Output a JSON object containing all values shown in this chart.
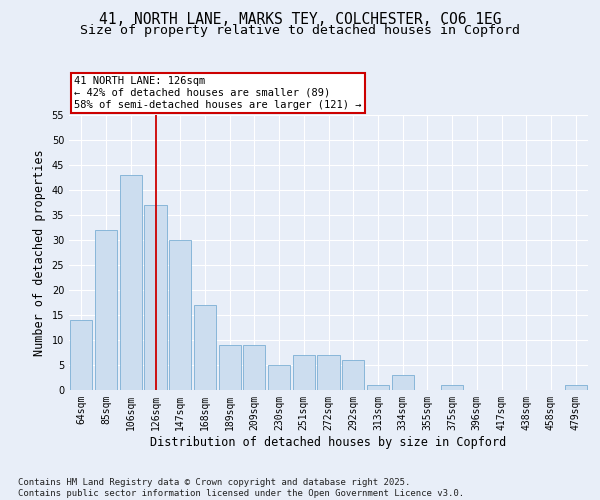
{
  "title_line1": "41, NORTH LANE, MARKS TEY, COLCHESTER, CO6 1EG",
  "title_line2": "Size of property relative to detached houses in Copford",
  "xlabel": "Distribution of detached houses by size in Copford",
  "ylabel": "Number of detached properties",
  "categories": [
    "64sqm",
    "85sqm",
    "106sqm",
    "126sqm",
    "147sqm",
    "168sqm",
    "189sqm",
    "209sqm",
    "230sqm",
    "251sqm",
    "272sqm",
    "292sqm",
    "313sqm",
    "334sqm",
    "355sqm",
    "375sqm",
    "396sqm",
    "417sqm",
    "438sqm",
    "458sqm",
    "479sqm"
  ],
  "values": [
    14,
    32,
    43,
    37,
    30,
    17,
    9,
    9,
    5,
    7,
    7,
    6,
    1,
    3,
    0,
    1,
    0,
    0,
    0,
    0,
    1
  ],
  "bar_color": "#ccddef",
  "bar_edge_color": "#7bafd4",
  "ref_line_index": 3,
  "ref_line_color": "#cc0000",
  "annotation_text": "41 NORTH LANE: 126sqm\n← 42% of detached houses are smaller (89)\n58% of semi-detached houses are larger (121) →",
  "annotation_box_color": "#ffffff",
  "annotation_box_edge": "#cc0000",
  "ylim": [
    0,
    55
  ],
  "yticks": [
    0,
    5,
    10,
    15,
    20,
    25,
    30,
    35,
    40,
    45,
    50,
    55
  ],
  "footnote": "Contains HM Land Registry data © Crown copyright and database right 2025.\nContains public sector information licensed under the Open Government Licence v3.0.",
  "bg_color": "#e8eef8",
  "plot_bg_color": "#e8eef8",
  "title_fontsize": 10.5,
  "subtitle_fontsize": 9.5,
  "axis_label_fontsize": 8.5,
  "tick_fontsize": 7,
  "annotation_fontsize": 7.5,
  "footnote_fontsize": 6.5
}
